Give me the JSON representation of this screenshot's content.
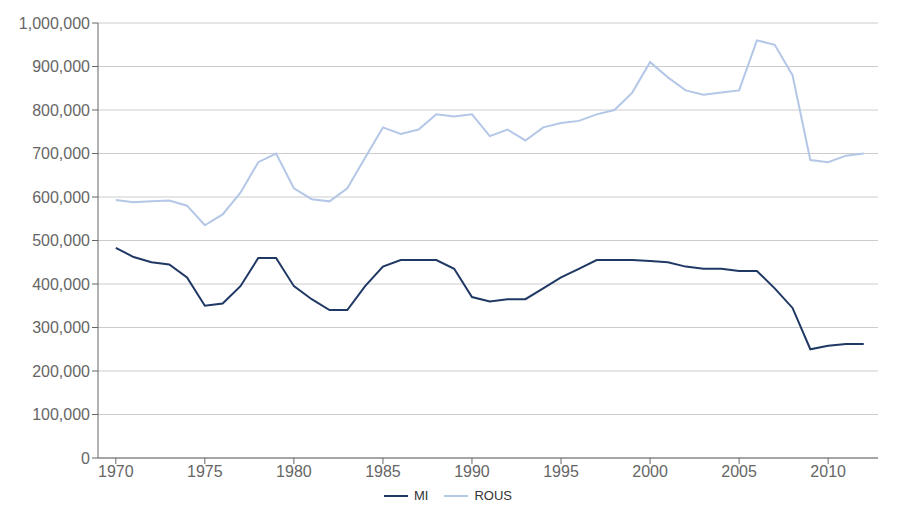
{
  "chart_data": {
    "type": "line",
    "x": [
      1970,
      1971,
      1972,
      1973,
      1974,
      1975,
      1976,
      1977,
      1978,
      1979,
      1980,
      1981,
      1982,
      1983,
      1984,
      1985,
      1986,
      1987,
      1988,
      1989,
      1990,
      1991,
      1992,
      1993,
      1994,
      1995,
      1996,
      1997,
      1998,
      1999,
      2000,
      2001,
      2002,
      2003,
      2004,
      2005,
      2006,
      2007,
      2008,
      2009,
      2010,
      2011,
      2012
    ],
    "series": [
      {
        "name": "MI",
        "color": "#203864",
        "values": [
          483000,
          462000,
          450000,
          445000,
          415000,
          350000,
          355000,
          395000,
          460000,
          460000,
          395000,
          365000,
          340000,
          340000,
          395000,
          440000,
          455000,
          455000,
          455000,
          435000,
          370000,
          360000,
          365000,
          365000,
          390000,
          415000,
          435000,
          455000,
          455000,
          455000,
          453000,
          450000,
          440000,
          435000,
          435000,
          430000,
          430000,
          390000,
          345000,
          250000,
          258000,
          262000,
          262000
        ]
      },
      {
        "name": "ROUS",
        "color": "#b4c7e7",
        "values": [
          593000,
          588000,
          590000,
          592000,
          580000,
          535000,
          560000,
          610000,
          680000,
          700000,
          620000,
          595000,
          590000,
          620000,
          690000,
          760000,
          745000,
          755000,
          790000,
          785000,
          790000,
          740000,
          755000,
          730000,
          760000,
          770000,
          775000,
          790000,
          800000,
          840000,
          910000,
          875000,
          845000,
          835000,
          840000,
          845000,
          960000,
          950000,
          880000,
          685000,
          680000,
          695000,
          700000
        ]
      }
    ],
    "xlim": [
      1969.0,
      2012.8
    ],
    "xticks": [
      1970,
      1975,
      1980,
      1985,
      1990,
      1995,
      2000,
      2005,
      2010
    ],
    "ylim": [
      0,
      1000000
    ],
    "yticks": [
      0,
      {
        "value": 100000,
        "label": "100,000"
      },
      {
        "value": 200000,
        "label": "200,000"
      },
      {
        "value": 300000,
        "label": "300,000"
      },
      {
        "value": 400000,
        "label": "400,000"
      },
      {
        "value": 500000,
        "label": "500,000"
      },
      {
        "value": 600000,
        "label": "600,000"
      },
      {
        "value": 700000,
        "label": "700,000"
      },
      {
        "value": 800000,
        "label": "800,000"
      },
      {
        "value": 900000,
        "label": "900,000"
      },
      {
        "value": 1000000,
        "label": "1,000,000"
      }
    ],
    "grid": true,
    "legend": "bottom"
  }
}
